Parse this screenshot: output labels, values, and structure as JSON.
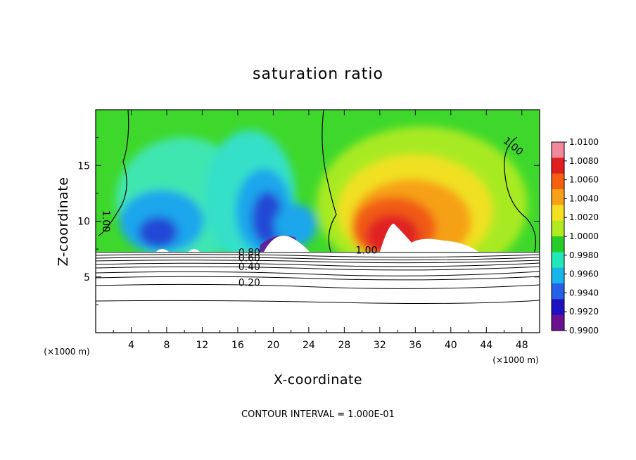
{
  "chart_data": {
    "type": "heatmap",
    "title": "saturation ratio",
    "xlabel": "X-coordinate",
    "ylabel": "Z-coordinate",
    "x_unit_label": "(×1000 m)",
    "y_unit_label": "(×1000 m)",
    "xlim": [
      0,
      50
    ],
    "ylim": [
      0,
      20
    ],
    "x_ticks": [
      4,
      8,
      12,
      16,
      20,
      24,
      28,
      32,
      36,
      40,
      44,
      48
    ],
    "y_ticks": [
      5,
      10,
      15
    ],
    "colorbar": {
      "range": [
        0.99,
        1.01
      ],
      "tick_labels": [
        "1.0100",
        "1.0080",
        "1.0060",
        "1.0040",
        "1.0020",
        "1.0000",
        "0.9980",
        "0.9960",
        "0.9940",
        "0.9920",
        "0.9900"
      ],
      "colors": [
        "#f08a9a",
        "#e02020",
        "#f46010",
        "#f7a018",
        "#f3e020",
        "#b0ea20",
        "#28cc28",
        "#20e8b8",
        "#18b4ea",
        "#2660e6",
        "#1c10c0",
        "#6a1090"
      ]
    },
    "fill_lower_bound_z": 7.3,
    "contour_labels": [
      {
        "text": "0.80",
        "x": 17.3,
        "z": 6.9
      },
      {
        "text": "0.60",
        "x": 17.3,
        "z": 6.4
      },
      {
        "text": "0.40",
        "x": 17.3,
        "z": 5.6
      },
      {
        "text": "0.20",
        "x": 17.3,
        "z": 4.2
      },
      {
        "text": "1.00",
        "x": 30.5,
        "z": 7.1
      },
      {
        "text": "1.00",
        "x": 46.8,
        "z": 16.5
      },
      {
        "text": "1.00",
        "x": 0.8,
        "z": 10.0
      }
    ],
    "contour_interval_text": "CONTOUR INTERVAL = 1.000E-01"
  }
}
